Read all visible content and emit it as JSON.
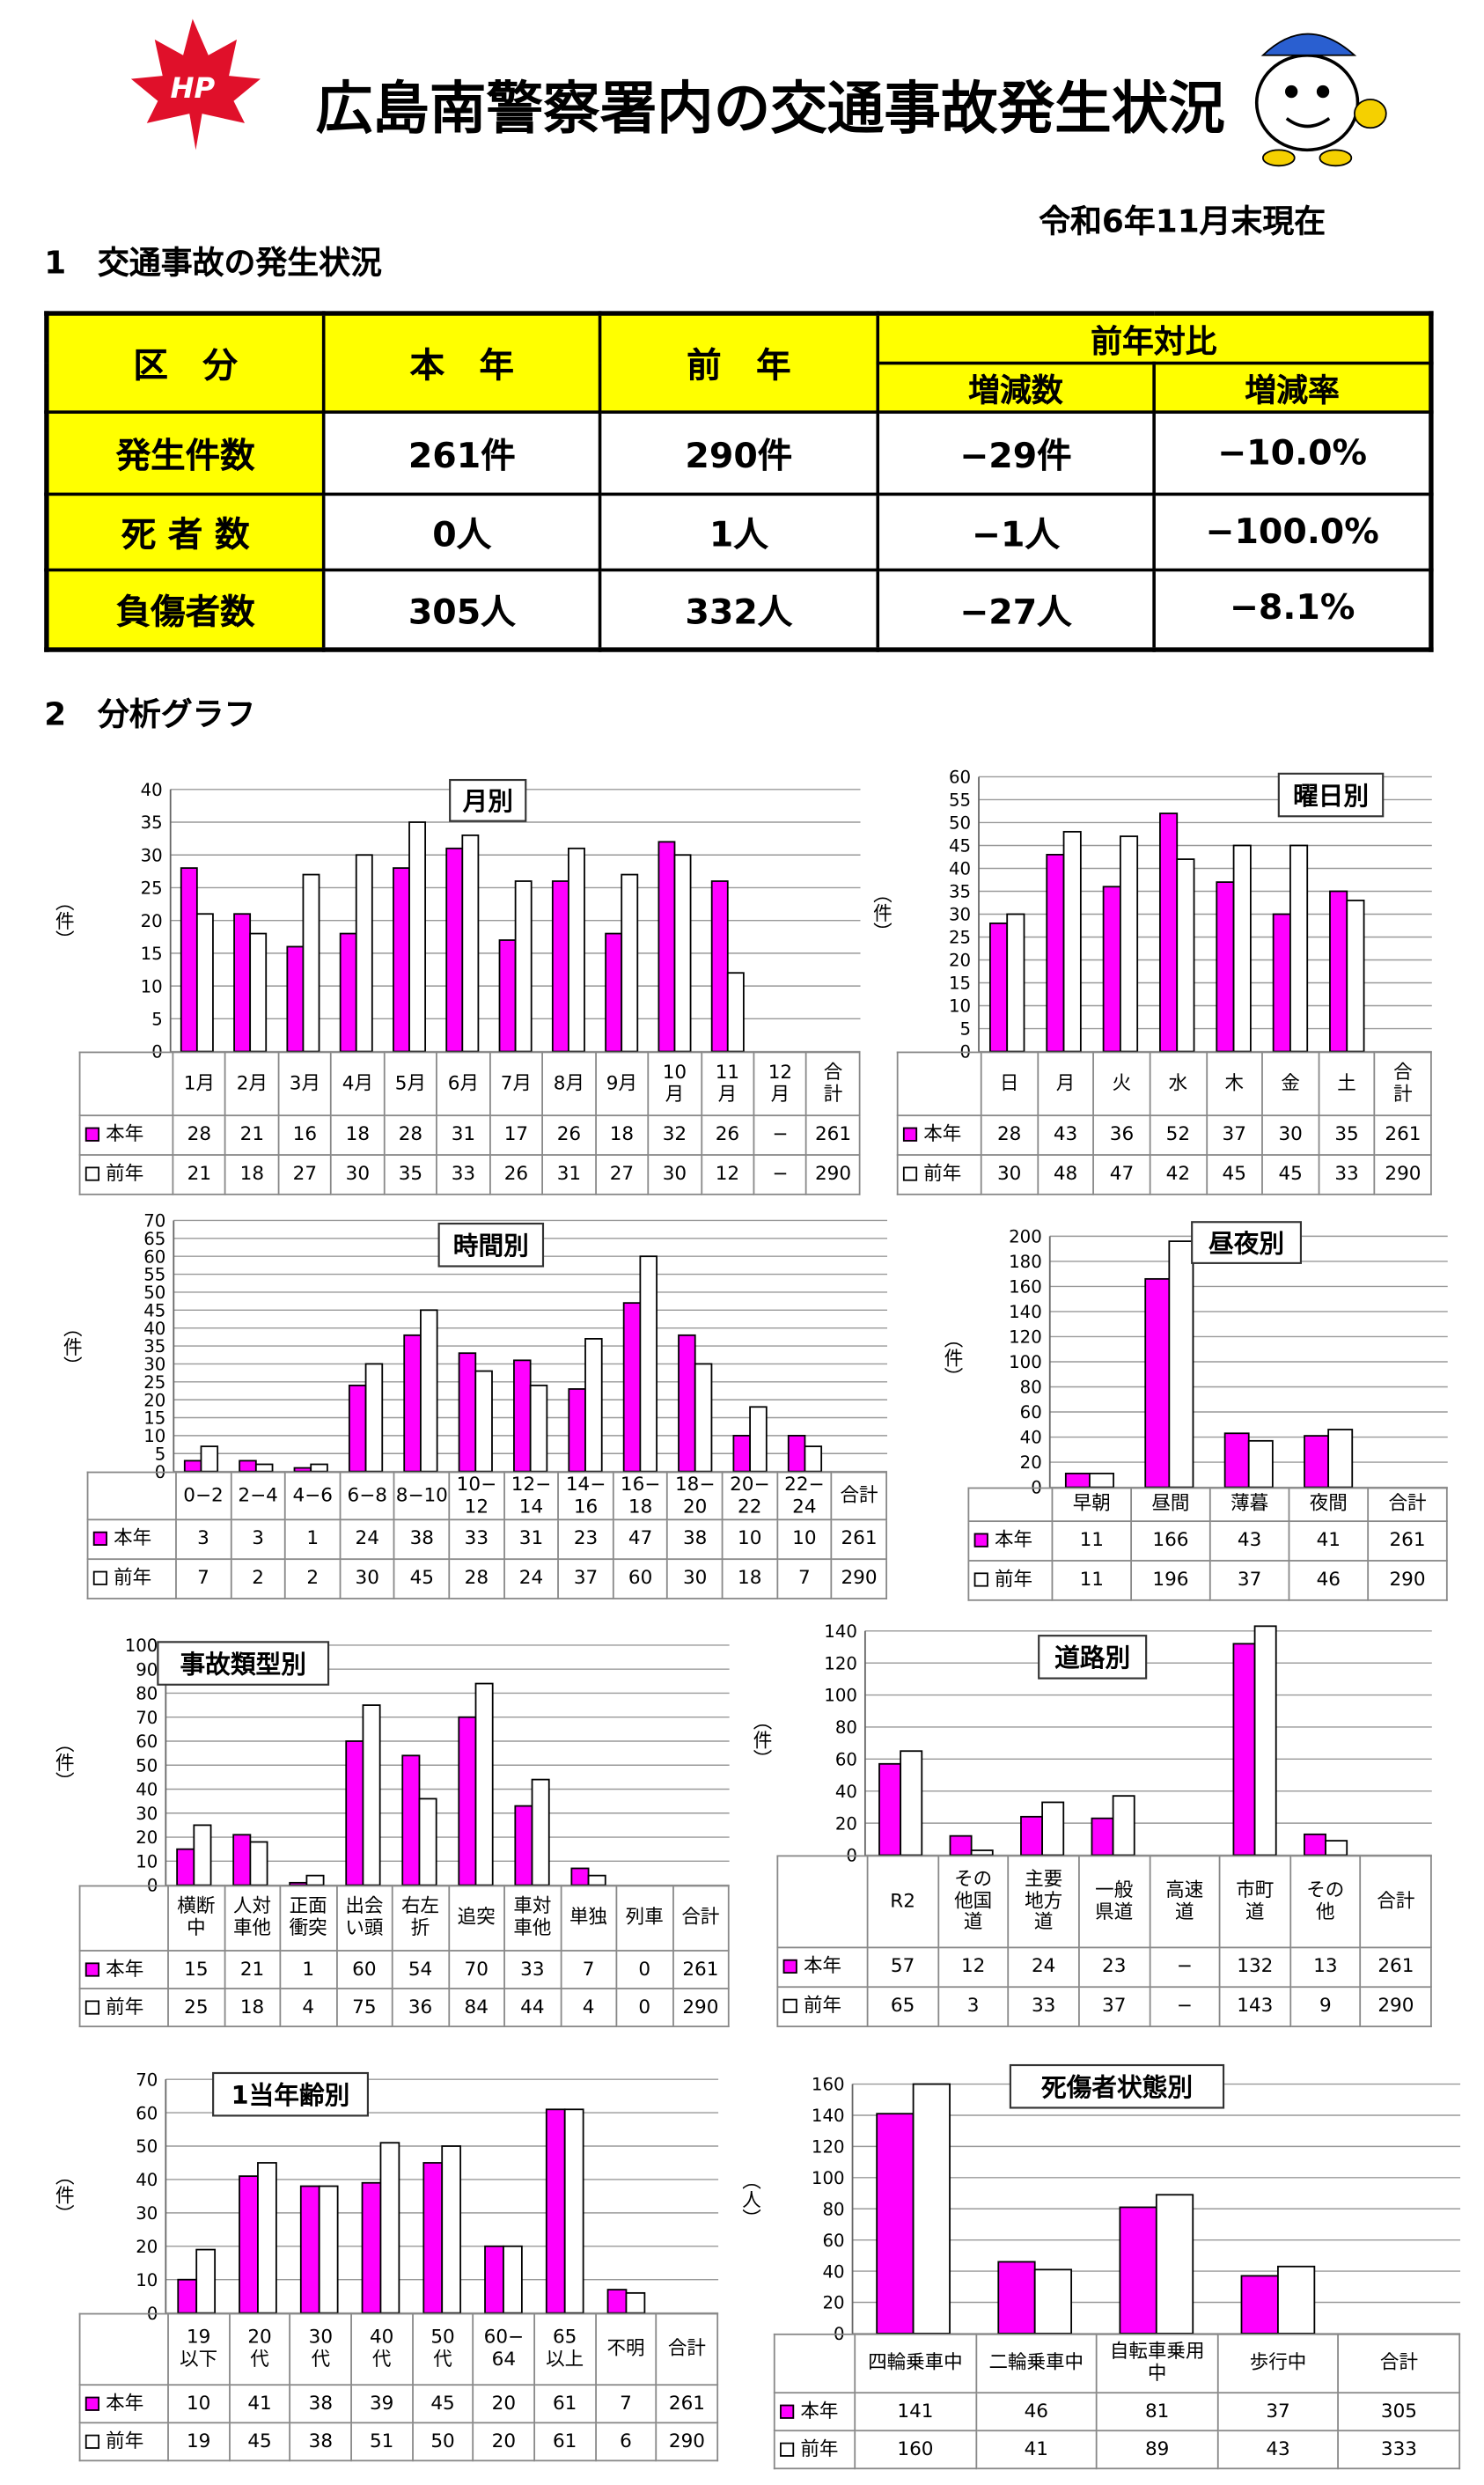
{
  "header": {
    "logo": "HP",
    "title": "広島南警察署内の交通事故発生状況",
    "date": "令和6年11月末現在"
  },
  "section1": {
    "heading": "1　交通事故の発生状況"
  },
  "summary_table": {
    "header": [
      "区　分",
      "本　年",
      "前　年",
      "前年対比"
    ],
    "subheader": [
      "増減数",
      "増減率"
    ],
    "rows": [
      [
        "発生件数",
        "261件",
        "290件",
        "−29件",
        "−10.0%"
      ],
      [
        "死 者 数",
        "0人",
        "1人",
        "−1人",
        "−100.0%"
      ],
      [
        "負傷者数",
        "305人",
        "332人",
        "−27人",
        "−8.1%"
      ]
    ]
  },
  "section2": {
    "heading": "2　分析グラフ"
  },
  "chart_data": [
    {
      "type": "bar",
      "title": "月別",
      "y_label": "（件）",
      "categories": [
        "1月",
        "2月",
        "3月",
        "4月",
        "5月",
        "6月",
        "7月",
        "8月",
        "9月",
        "10\n月",
        "11\n月",
        "12\n月"
      ],
      "total_label": "合\n計",
      "series": [
        {
          "name": "本年",
          "color": "#ff00ff",
          "values": [
            28,
            21,
            16,
            18,
            28,
            31,
            17,
            26,
            18,
            32,
            26,
            null
          ],
          "value_labels": [
            "28",
            "21",
            "16",
            "18",
            "28",
            "31",
            "17",
            "26",
            "18",
            "32",
            "26",
            "−"
          ],
          "total": 261
        },
        {
          "name": "前年",
          "color": "#ffffff",
          "values": [
            21,
            18,
            27,
            30,
            35,
            33,
            26,
            31,
            27,
            30,
            12,
            null
          ],
          "value_labels": [
            "21",
            "18",
            "27",
            "30",
            "35",
            "33",
            "26",
            "31",
            "27",
            "30",
            "12",
            "−"
          ],
          "total": 290
        }
      ],
      "ylim": [
        0,
        40
      ],
      "yticks": [
        0,
        5,
        10,
        15,
        20,
        25,
        30,
        35,
        40
      ]
    },
    {
      "type": "bar",
      "title": "曜日別",
      "y_label": "（件）",
      "categories": [
        "日",
        "月",
        "火",
        "水",
        "木",
        "金",
        "土"
      ],
      "total_label": "合\n計",
      "series": [
        {
          "name": "本年",
          "color": "#ff00ff",
          "values": [
            28,
            43,
            36,
            52,
            37,
            30,
            35
          ],
          "total": 261
        },
        {
          "name": "前年",
          "color": "#ffffff",
          "values": [
            30,
            48,
            47,
            42,
            45,
            45,
            33
          ],
          "total": 290
        }
      ],
      "ylim": [
        0,
        60
      ],
      "yticks": [
        0,
        5,
        10,
        15,
        20,
        25,
        30,
        35,
        40,
        45,
        50,
        55,
        60
      ]
    },
    {
      "type": "bar",
      "title": "時間別",
      "y_label": "（件）",
      "categories": [
        "0−2",
        "2−4",
        "4−6",
        "6−8",
        "8−10",
        "10−\n12",
        "12−\n14",
        "14−\n16",
        "16−\n18",
        "18−\n20",
        "20−\n22",
        "22−\n24"
      ],
      "total_label": "合計",
      "series": [
        {
          "name": "本年",
          "color": "#ff00ff",
          "values": [
            3,
            3,
            1,
            24,
            38,
            33,
            31,
            23,
            47,
            38,
            10,
            10
          ],
          "total": 261
        },
        {
          "name": "前年",
          "color": "#ffffff",
          "values": [
            7,
            2,
            2,
            30,
            45,
            28,
            24,
            37,
            60,
            30,
            18,
            7
          ],
          "total": 290
        }
      ],
      "ylim": [
        0,
        70
      ],
      "yticks": [
        0,
        5,
        10,
        15,
        20,
        25,
        30,
        35,
        40,
        45,
        50,
        55,
        60,
        65,
        70
      ]
    },
    {
      "type": "bar",
      "title": "昼夜別",
      "y_label": "（件）",
      "categories": [
        "早朝",
        "昼間",
        "薄暮",
        "夜間"
      ],
      "total_label": "合計",
      "series": [
        {
          "name": "本年",
          "color": "#ff00ff",
          "values": [
            11,
            166,
            43,
            41
          ],
          "total": 261
        },
        {
          "name": "前年",
          "color": "#ffffff",
          "values": [
            11,
            196,
            37,
            46
          ],
          "total": 290
        }
      ],
      "ylim": [
        0,
        200
      ],
      "yticks": [
        0,
        20,
        40,
        60,
        80,
        100,
        120,
        140,
        160,
        180,
        200
      ]
    },
    {
      "type": "bar",
      "title": "事故類型別",
      "y_label": "（件）",
      "categories": [
        "横断\n中",
        "人対\n車他",
        "正面\n衝突",
        "出会\nい頭",
        "右左\n折",
        "追突",
        "車対\n車他",
        "単独",
        "列車"
      ],
      "total_label": "合計",
      "series": [
        {
          "name": "本年",
          "color": "#ff00ff",
          "values": [
            15,
            21,
            1,
            60,
            54,
            70,
            33,
            7,
            0
          ],
          "total": 261
        },
        {
          "name": "前年",
          "color": "#ffffff",
          "values": [
            25,
            18,
            4,
            75,
            36,
            84,
            44,
            4,
            0
          ],
          "total": 290
        }
      ],
      "ylim": [
        0,
        100
      ],
      "yticks": [
        0,
        10,
        20,
        30,
        40,
        50,
        60,
        70,
        80,
        90,
        100
      ]
    },
    {
      "type": "bar",
      "title": "道路別",
      "y_label": "（件）",
      "categories": [
        "R2",
        "その\n他国\n道",
        "主要\n地方\n道",
        "一般\n県道",
        "高速\n道",
        "市町\n道",
        "その\n他"
      ],
      "total_label": "合計",
      "series": [
        {
          "name": "本年",
          "color": "#ff00ff",
          "values": [
            57,
            12,
            24,
            23,
            null,
            132,
            13
          ],
          "value_labels": [
            "57",
            "12",
            "24",
            "23",
            "−",
            "132",
            "13"
          ],
          "total": 261
        },
        {
          "name": "前年",
          "color": "#ffffff",
          "values": [
            65,
            3,
            33,
            37,
            null,
            143,
            9
          ],
          "value_labels": [
            "65",
            "3",
            "33",
            "37",
            "−",
            "143",
            "9"
          ],
          "total": 290
        }
      ],
      "ylim": [
        0,
        140
      ],
      "yticks": [
        0,
        20,
        40,
        60,
        80,
        100,
        120,
        140
      ]
    },
    {
      "type": "bar",
      "title": "1当年齢別",
      "y_label": "（件）",
      "categories": [
        "19\n以下",
        "20\n代",
        "30\n代",
        "40\n代",
        "50\n代",
        "60−\n64",
        "65\n以上",
        "不明"
      ],
      "total_label": "合計",
      "series": [
        {
          "name": "本年",
          "color": "#ff00ff",
          "values": [
            10,
            41,
            38,
            39,
            45,
            20,
            61,
            7
          ],
          "total": 261
        },
        {
          "name": "前年",
          "color": "#ffffff",
          "values": [
            19,
            45,
            38,
            51,
            50,
            20,
            61,
            6
          ],
          "total": 290
        }
      ],
      "ylim": [
        0,
        70
      ],
      "yticks": [
        0,
        10,
        20,
        30,
        40,
        50,
        60,
        70
      ]
    },
    {
      "type": "bar",
      "title": "死傷者状態別",
      "y_label": "（人）",
      "categories": [
        "四輪乗車中",
        "二輪乗車中",
        "自転車乗用\n中",
        "歩行中"
      ],
      "total_label": "合計",
      "series": [
        {
          "name": "本年",
          "color": "#ff00ff",
          "values": [
            141,
            46,
            81,
            37
          ],
          "total": 305
        },
        {
          "name": "前年",
          "color": "#ffffff",
          "values": [
            160,
            41,
            89,
            43
          ],
          "total": 333
        }
      ],
      "ylim": [
        0,
        160
      ],
      "yticks": [
        0,
        20,
        40,
        60,
        80,
        100,
        120,
        140,
        160
      ]
    }
  ]
}
